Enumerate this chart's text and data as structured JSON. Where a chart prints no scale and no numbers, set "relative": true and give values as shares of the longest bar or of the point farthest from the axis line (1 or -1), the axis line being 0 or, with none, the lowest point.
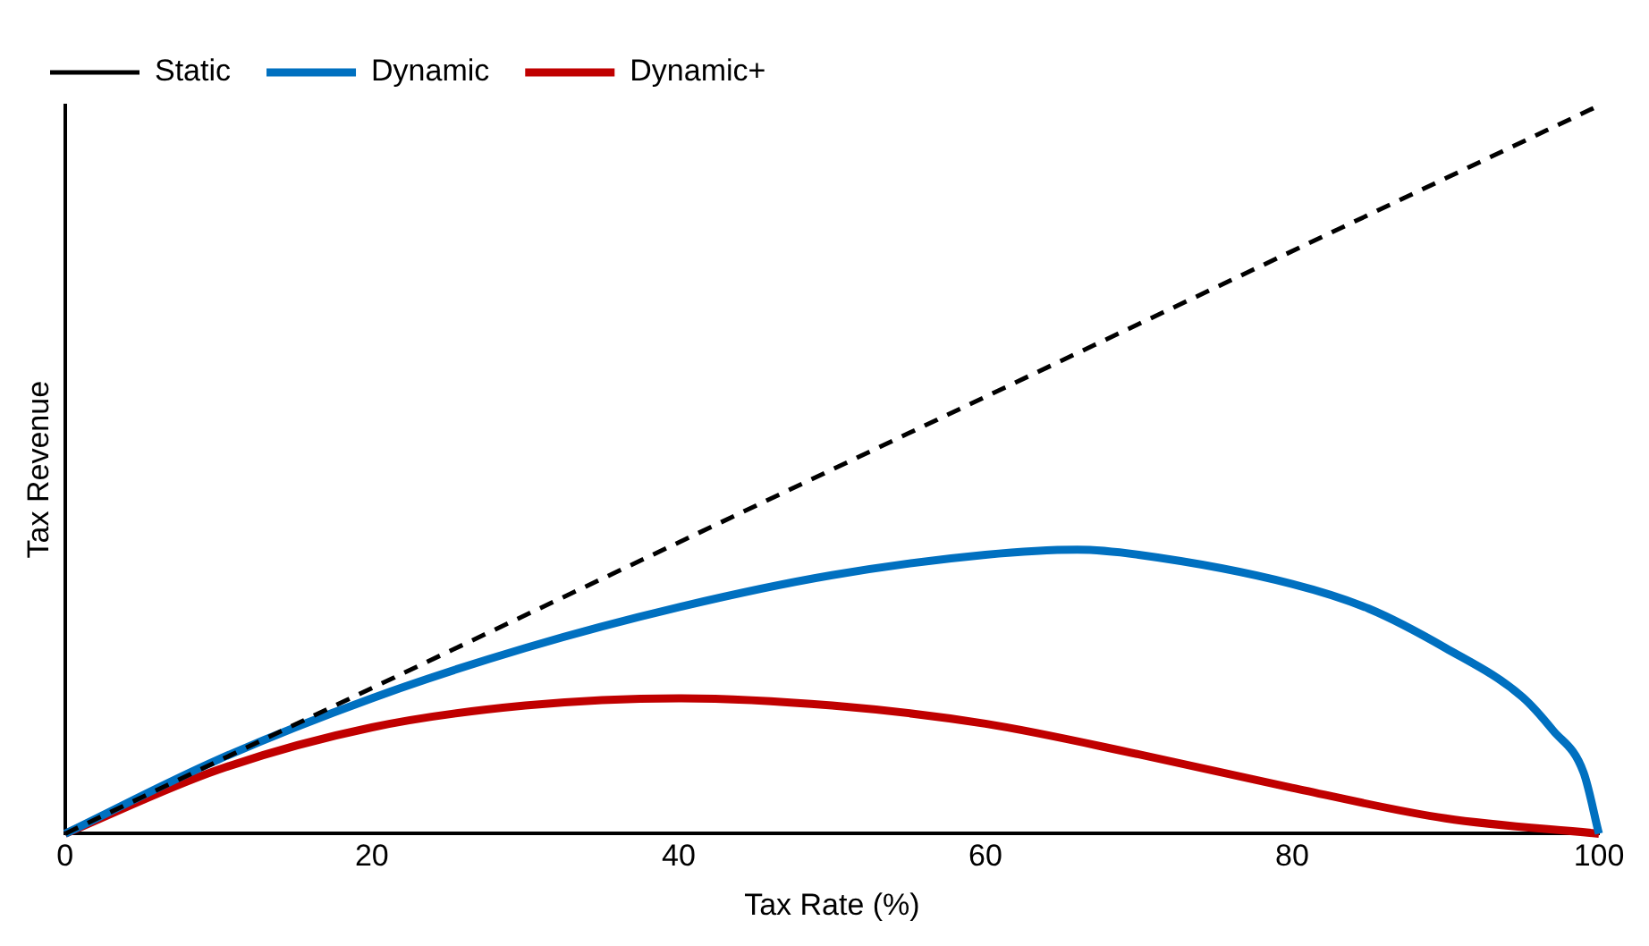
{
  "chart_data": {
    "type": "line",
    "xlabel": "Tax Rate (%)",
    "ylabel": "Tax Revenue",
    "relative": true,
    "xlim": [
      0,
      100
    ],
    "xticks": [
      0,
      20,
      40,
      60,
      80,
      100
    ],
    "grid": false,
    "legend": "top left",
    "marker": "none",
    "series": [
      {
        "name": "Static",
        "color": "#000000",
        "line_style": "dashed",
        "x": [
          0,
          100
        ],
        "values": [
          0,
          1
        ]
      },
      {
        "name": "Dynamic",
        "color": "#0070c0",
        "line_style": "solid",
        "x": [
          0,
          10,
          20,
          30,
          40,
          50,
          60,
          66,
          70,
          80,
          85,
          90,
          95,
          97,
          99,
          100
        ],
        "values": [
          0,
          0.102,
          0.186,
          0.255,
          0.311,
          0.355,
          0.383,
          0.39,
          0.383,
          0.343,
          0.309,
          0.255,
          0.188,
          0.142,
          0.084,
          0
        ]
      },
      {
        "name": "Dynamic+",
        "color": "#c00000",
        "line_style": "solid",
        "x": [
          0,
          10,
          20,
          30,
          40,
          50,
          60,
          70,
          80,
          90,
          100
        ],
        "values": [
          0,
          0.088,
          0.146,
          0.176,
          0.186,
          0.176,
          0.151,
          0.109,
          0.063,
          0.021,
          0
        ]
      }
    ]
  }
}
